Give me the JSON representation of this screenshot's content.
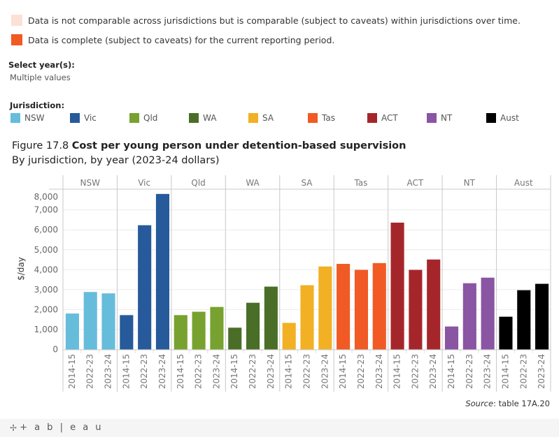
{
  "legend_notes": [
    {
      "label": "Data is not comparable across jurisdictions but is comparable (subject to caveats) within jurisdictions over time.",
      "color": "#fde0d6"
    },
    {
      "label": "Data is complete (subject to caveats) for the current reporting period.",
      "color": "#f15a24"
    }
  ],
  "filter": {
    "label": "Select year(s):",
    "value": "Multiple values"
  },
  "jurisdiction_legend": {
    "label": "Jurisdiction:",
    "items": [
      {
        "label": "NSW",
        "color": "#66bcdb"
      },
      {
        "label": "Vic",
        "color": "#265a9a"
      },
      {
        "label": "Qld",
        "color": "#78a22f"
      },
      {
        "label": "WA",
        "color": "#4a6e28"
      },
      {
        "label": "SA",
        "color": "#f2b024"
      },
      {
        "label": "Tas",
        "color": "#f15a24"
      },
      {
        "label": "ACT",
        "color": "#a5262a"
      },
      {
        "label": "NT",
        "color": "#8a55a3"
      },
      {
        "label": "Aust",
        "color": "#000000"
      }
    ]
  },
  "figure": {
    "number": "Figure 17.8",
    "title": "Cost per young person under detention-based supervision",
    "subtitle": "By jurisdiction, by year (2023-24 dollars)"
  },
  "source": {
    "label": "Source",
    "text": ": table 17A.20"
  },
  "footer": {
    "logo_text": "+ a b | e a u",
    "logo_mark": "✢"
  },
  "chart_data": {
    "type": "bar",
    "title": "Cost per young person under detention-based supervision",
    "subtitle": "By jurisdiction, by year (2023-24 dollars)",
    "xlabel": "",
    "ylabel": "$/day",
    "ylim": [
      0,
      7800
    ],
    "yticks": [
      0,
      1000,
      2000,
      3000,
      4000,
      5000,
      6000,
      7000,
      8000
    ],
    "ytick_labels": [
      "0",
      "1,000",
      "2,000",
      "3,000",
      "4,000",
      "5,000",
      "6,000",
      "7,000",
      "8,000"
    ],
    "grid": true,
    "legend": "top",
    "panes": [
      "NSW",
      "Vic",
      "Qld",
      "WA",
      "SA",
      "Tas",
      "ACT",
      "NT",
      "Aust"
    ],
    "categories": [
      "2014-15",
      "2022-23",
      "2023-24"
    ],
    "series": [
      {
        "name": "NSW",
        "color": "#66bcdb",
        "values": [
          1800,
          2880,
          2810
        ]
      },
      {
        "name": "Vic",
        "color": "#265a9a",
        "values": [
          1720,
          6230,
          7800
        ]
      },
      {
        "name": "Qld",
        "color": "#78a22f",
        "values": [
          1720,
          1890,
          2130
        ]
      },
      {
        "name": "WA",
        "color": "#4a6e28",
        "values": [
          1090,
          2340,
          3150
        ]
      },
      {
        "name": "SA",
        "color": "#f2b024",
        "values": [
          1330,
          3220,
          4160
        ]
      },
      {
        "name": "Tas",
        "color": "#f15a24",
        "values": [
          4290,
          3990,
          4330
        ]
      },
      {
        "name": "ACT",
        "color": "#a5262a",
        "values": [
          6360,
          3990,
          4510
        ]
      },
      {
        "name": "NT",
        "color": "#8a55a3",
        "values": [
          1150,
          3320,
          3600
        ]
      },
      {
        "name": "Aust",
        "color": "#000000",
        "values": [
          1640,
          2970,
          3290
        ]
      }
    ]
  }
}
